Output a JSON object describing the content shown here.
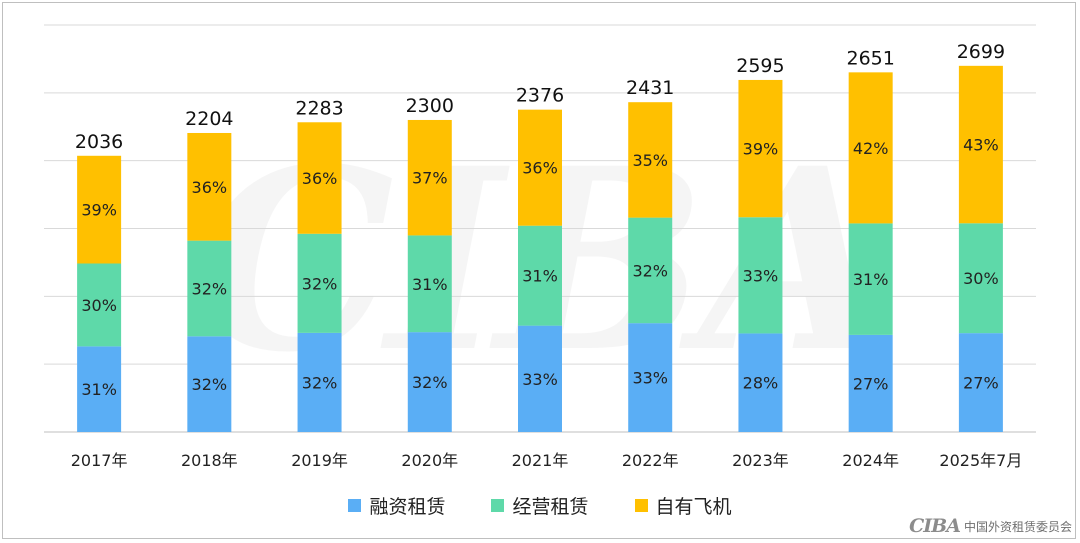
{
  "chart_data": {
    "type": "bar",
    "stacked": true,
    "categories": [
      "2017年",
      "2018年",
      "2019年",
      "2020年",
      "2021年",
      "2022年",
      "2023年",
      "2024年",
      "2025年7月"
    ],
    "totals": [
      2036,
      2204,
      2283,
      2300,
      2376,
      2431,
      2595,
      2651,
      2699
    ],
    "series": [
      {
        "name": "融资租赁",
        "color": "#5aaef5",
        "percent_labels": [
          "31%",
          "32%",
          "32%",
          "32%",
          "33%",
          "33%",
          "28%",
          "27%",
          "27%"
        ],
        "shares": [
          31,
          32,
          32,
          32,
          33,
          33,
          28,
          27,
          27
        ]
      },
      {
        "name": "经营租赁",
        "color": "#5ed9a9",
        "percent_labels": [
          "30%",
          "32%",
          "32%",
          "31%",
          "31%",
          "32%",
          "33%",
          "31%",
          "30%"
        ],
        "shares": [
          30,
          32,
          32,
          31,
          31,
          32,
          33,
          31,
          30
        ]
      },
      {
        "name": "自有飞机",
        "color": "#ffc000",
        "percent_labels": [
          "39%",
          "36%",
          "36%",
          "37%",
          "36%",
          "35%",
          "39%",
          "42%",
          "43%"
        ],
        "shares": [
          39,
          36,
          36,
          37,
          36,
          35,
          39,
          42,
          43
        ]
      }
    ],
    "ylim": [
      0,
      3000
    ],
    "grid": true,
    "legend_position": "bottom"
  },
  "logo": {
    "mark": "CIBA",
    "org_name": "中国外资租赁委员会"
  },
  "background_watermark": "CIBA"
}
